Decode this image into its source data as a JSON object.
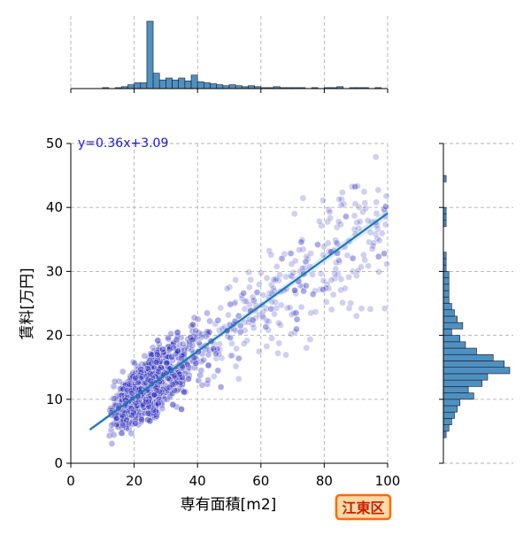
{
  "chart_data": {
    "type": "scatter",
    "title": "",
    "xlabel": "専有面積[m2]",
    "ylabel": "賃料[万円]",
    "xlim": [
      0,
      100
    ],
    "ylim": [
      0,
      50
    ],
    "x_ticks": [
      0,
      20,
      40,
      60,
      80,
      100
    ],
    "y_ticks": [
      0,
      10,
      20,
      30,
      40,
      50
    ],
    "grid": true,
    "regression": {
      "slope": 0.36,
      "intercept": 3.09,
      "x_range": [
        6,
        100
      ],
      "label": "y=0.36x+3.09"
    },
    "point_count": 1600,
    "point_color": "#2b2bbf",
    "line_color": "#1f77b4",
    "hist_color": "#4f90c2",
    "x_hist": {
      "bin_width": 2,
      "counts": [
        0,
        0,
        0,
        0,
        0,
        1,
        0,
        1,
        2,
        4,
        6,
        6,
        70,
        16,
        9,
        11,
        9,
        11,
        8,
        14,
        7,
        6,
        5,
        4,
        3,
        4,
        3,
        2,
        3,
        2,
        1,
        1,
        2,
        1,
        1,
        1,
        1,
        0,
        1,
        0,
        1,
        1,
        2,
        0,
        1,
        1,
        1,
        0,
        1,
        0
      ]
    },
    "y_hist": {
      "bin_width": 1,
      "counts": [
        0,
        0,
        0,
        0,
        1,
        2,
        3,
        4,
        5,
        6,
        11,
        9,
        14,
        16,
        24,
        22,
        18,
        12,
        8,
        6,
        3,
        7,
        5,
        4,
        3,
        2,
        2,
        2,
        2,
        2,
        1,
        1,
        1,
        0,
        0,
        0,
        0,
        1,
        1,
        1,
        0,
        0,
        0,
        0,
        1,
        0,
        0,
        0,
        0,
        0
      ]
    }
  },
  "badge": {
    "text": "江東区"
  }
}
